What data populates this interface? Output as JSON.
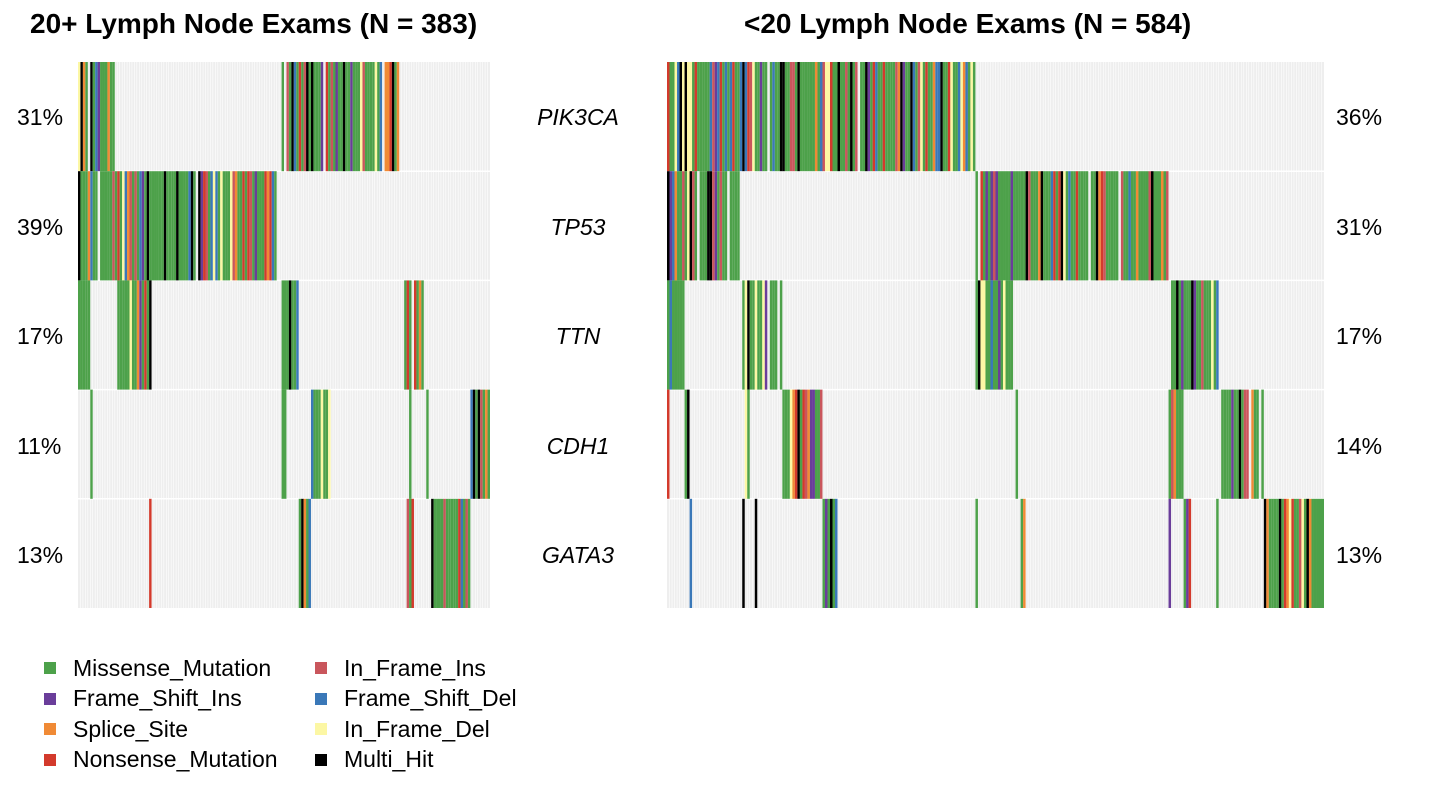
{
  "panels": [
    {
      "title": "20+ Lymph Node Exams (N = 383)",
      "n": 383,
      "columns": 168,
      "percents": [
        "31%",
        "39%",
        "17%",
        "11%",
        "13%"
      ]
    },
    {
      "title": "<20 Lymph Node Exams (N = 584)",
      "n": 584,
      "columns": 262,
      "percents": [
        "36%",
        "31%",
        "17%",
        "14%",
        "13%"
      ]
    }
  ],
  "genes": [
    "PIK3CA",
    "TP53",
    "TTN",
    "CDH1",
    "GATA3"
  ],
  "legend": [
    {
      "label": "Missense_Mutation",
      "color": "#4DA14A"
    },
    {
      "label": "Frame_Shift_Ins",
      "color": "#6A3D9A"
    },
    {
      "label": "Splice_Site",
      "color": "#F08A35"
    },
    {
      "label": "Nonsense_Mutation",
      "color": "#D33A2C"
    },
    {
      "label": "In_Frame_Ins",
      "color": "#C9565C"
    },
    {
      "label": "Frame_Shift_Del",
      "color": "#3A78B8"
    },
    {
      "label": "In_Frame_Del",
      "color": "#FCF7A4"
    },
    {
      "label": "Multi_Hit",
      "color": "#000000"
    }
  ],
  "chart_data": {
    "type": "heatmap",
    "background_color": "#EEEEEE",
    "rows": [
      "PIK3CA",
      "TP53",
      "TTN",
      "CDH1",
      "GATA3"
    ],
    "groups": [
      {
        "name": "20+ Lymph Node Exams (N = 383)",
        "mutated_fraction": [
          0.31,
          0.39,
          0.17,
          0.11,
          0.13
        ],
        "mutated_column_ranges": {
          "PIK3CA": [
            [
              0,
              15
            ],
            [
              83,
              131
            ]
          ],
          "TP53": [
            [
              0,
              81
            ]
          ],
          "TTN": [
            [
              0,
              5
            ],
            [
              16,
              30
            ],
            [
              83,
              90
            ],
            [
              133,
              141
            ]
          ],
          "CDH1": [
            [
              5,
              6
            ],
            [
              83,
              85
            ],
            [
              95,
              103
            ],
            [
              135,
              136
            ],
            [
              142,
              143
            ],
            [
              160,
              168
            ]
          ],
          "GATA3": [
            [
              29,
              30
            ],
            [
              90,
              95
            ],
            [
              134,
              137
            ],
            [
              144,
              160
            ]
          ]
        }
      },
      {
        "name": "<20 Lymph Node Exams (N = 584)",
        "mutated_fraction": [
          0.36,
          0.31,
          0.17,
          0.14,
          0.13
        ],
        "mutated_column_ranges": {
          "PIK3CA": [
            [
              0,
              123
            ]
          ],
          "TP53": [
            [
              0,
              29
            ],
            [
              123,
              200
            ]
          ],
          "TTN": [
            [
              0,
              7
            ],
            [
              30,
              46
            ],
            [
              123,
              138
            ],
            [
              200,
              220
            ]
          ],
          "CDH1": [
            [
              0,
              1
            ],
            [
              7,
              9
            ],
            [
              31,
              33
            ],
            [
              46,
              62
            ],
            [
              139,
              140
            ],
            [
              200,
              206
            ],
            [
              221,
              238
            ]
          ],
          "GATA3": [
            [
              9,
              10
            ],
            [
              30,
              31
            ],
            [
              35,
              36
            ],
            [
              62,
              68
            ],
            [
              123,
              124
            ],
            [
              141,
              143
            ],
            [
              200,
              201
            ],
            [
              206,
              209
            ],
            [
              219,
              220
            ],
            [
              238,
              262
            ]
          ]
        }
      }
    ]
  }
}
